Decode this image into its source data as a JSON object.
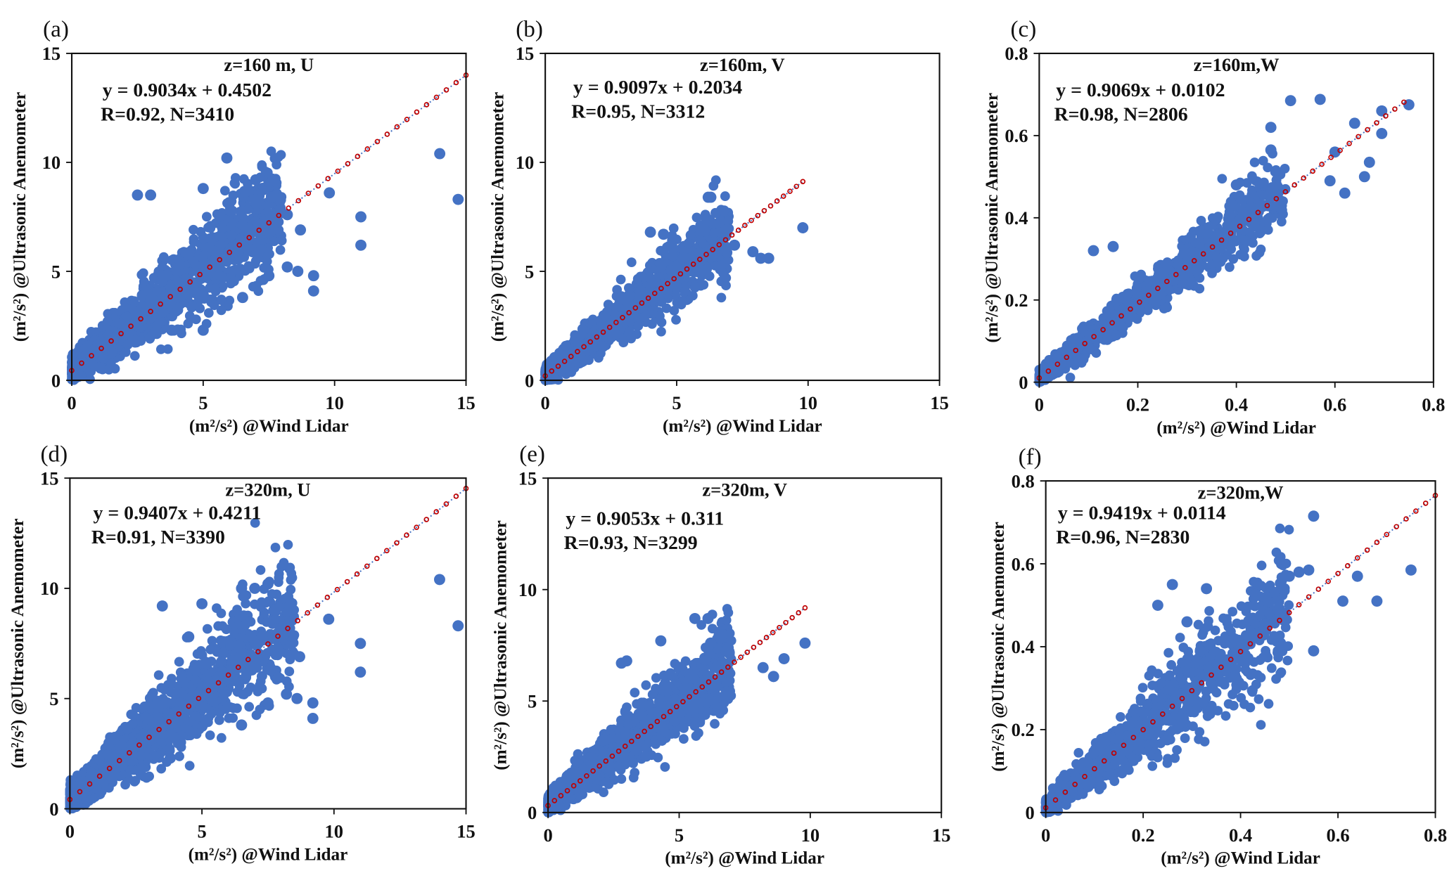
{
  "chart_data": [
    {
      "id": "a",
      "type": "scatter",
      "panel_label": "(a)",
      "title": "z=160 m, U",
      "equation": "y = 0.9034x + 0.4502",
      "stats": "R=0.92, N=3410",
      "xlabel": "(m²/s²) @Wind Lidar",
      "ylabel": "(m²/s²) @Ultrasonic Anemometer",
      "xlim": [
        0,
        15
      ],
      "ylim": [
        0,
        15
      ],
      "xticks": [
        "0",
        "5",
        "10",
        "15"
      ],
      "yticks": [
        "0",
        "5",
        "10",
        "15"
      ],
      "fit": {
        "slope": 0.9034,
        "intercept": 0.4502,
        "x_range": [
          0,
          15
        ]
      },
      "N": 3410,
      "R": 0.92,
      "cloud": {
        "xmax": 8,
        "spread": 0.28,
        "base": 0.3
      },
      "outliers": [
        [
          14,
          10.4
        ],
        [
          14.7,
          8.3
        ],
        [
          11,
          7.5
        ],
        [
          11,
          6.2
        ],
        [
          9.8,
          8.6
        ],
        [
          9.2,
          4.8
        ],
        [
          9.2,
          4.1
        ],
        [
          8.6,
          5
        ],
        [
          8.2,
          5.2
        ],
        [
          7.5,
          4.8
        ],
        [
          5.9,
          10.2
        ],
        [
          7,
          9.2
        ],
        [
          2.5,
          8.5
        ],
        [
          3,
          8.5
        ],
        [
          5,
          8.8
        ],
        [
          8.7,
          6.9
        ],
        [
          8.2,
          7.6
        ],
        [
          7,
          8.3
        ],
        [
          7.6,
          8.4
        ],
        [
          6.5,
          3.8
        ],
        [
          5,
          2.3
        ],
        [
          3.8,
          2.3
        ]
      ]
    },
    {
      "id": "b",
      "type": "scatter",
      "panel_label": "(b)",
      "title": "z=160m, V",
      "equation": "y = 0.9097x + 0.2034",
      "stats": "R=0.95, N=3312",
      "xlabel": "(m²/s²) @Wind Lidar",
      "ylabel": "(m²/s²) @Ultrasonic Anemometer",
      "xlim": [
        0,
        15
      ],
      "ylim": [
        0,
        15
      ],
      "xticks": [
        "0",
        "5",
        "10",
        "15"
      ],
      "yticks": [
        "0",
        "5",
        "10",
        "15"
      ],
      "fit": {
        "slope": 0.9097,
        "intercept": 0.2034,
        "x_range": [
          0,
          9.8
        ]
      },
      "N": 3312,
      "R": 0.95,
      "cloud": {
        "xmax": 7,
        "spread": 0.22,
        "base": 0.2
      },
      "outliers": [
        [
          9.8,
          7
        ],
        [
          6.2,
          8.4
        ],
        [
          6.3,
          8.4
        ],
        [
          8.5,
          5.6
        ],
        [
          8.2,
          5.6
        ],
        [
          7.9,
          5.9
        ],
        [
          4,
          6.8
        ],
        [
          4.5,
          6.7
        ],
        [
          7.2,
          6.2
        ]
      ]
    },
    {
      "id": "c",
      "type": "scatter",
      "panel_label": "(c)",
      "title": "z=160m,W",
      "equation": "y = 0.9069x + 0.0102",
      "stats": "R=0.98, N=2806",
      "xlabel": "(m²/s²) @Wind Lidar",
      "ylabel": "(m²/s²) @Ultrasonic Anemometer",
      "xlim": [
        0,
        0.8
      ],
      "ylim": [
        0,
        0.8
      ],
      "xticks": [
        "0",
        "0.2",
        "0.4",
        "0.6",
        "0.8"
      ],
      "yticks": [
        "0",
        "0.2",
        "0.4",
        "0.6",
        "0.8"
      ],
      "fit": {
        "slope": 0.9069,
        "intercept": 0.0102,
        "x_range": [
          0,
          0.74
        ]
      },
      "N": 2806,
      "R": 0.98,
      "cloud": {
        "xmax": 0.5,
        "spread": 0.16,
        "base": 0.008
      },
      "outliers": [
        [
          0.51,
          0.685
        ],
        [
          0.57,
          0.688
        ],
        [
          0.75,
          0.675
        ],
        [
          0.695,
          0.66
        ],
        [
          0.695,
          0.605
        ],
        [
          0.64,
          0.63
        ],
        [
          0.47,
          0.62
        ],
        [
          0.66,
          0.5
        ],
        [
          0.62,
          0.46
        ],
        [
          0.67,
          0.535
        ],
        [
          0.59,
          0.49
        ],
        [
          0.6,
          0.56
        ],
        [
          0.47,
          0.565
        ],
        [
          0.4,
          0.48
        ],
        [
          0.15,
          0.33
        ],
        [
          0.11,
          0.32
        ]
      ]
    },
    {
      "id": "d",
      "type": "scatter",
      "panel_label": "(d)",
      "title": "z=320m, U",
      "equation": "y = 0.9407x + 0.4211",
      "stats": "R=0.91, N=3390",
      "xlabel": "(m²/s²) @Wind Lidar",
      "ylabel": "(m²/s²) @Ultrasonic Anemometer",
      "xlim": [
        0,
        15
      ],
      "ylim": [
        0,
        15
      ],
      "xticks": [
        "0",
        "5",
        "10",
        "15"
      ],
      "yticks": [
        "0",
        "5",
        "10",
        "15"
      ],
      "fit": {
        "slope": 0.9407,
        "intercept": 0.4211,
        "x_range": [
          0,
          15
        ]
      },
      "N": 3390,
      "R": 0.91,
      "cloud": {
        "xmax": 8.5,
        "spread": 0.3,
        "base": 0.3
      },
      "outliers": [
        [
          14,
          10.4
        ],
        [
          14.7,
          8.3
        ],
        [
          11,
          7.5
        ],
        [
          11,
          6.2
        ],
        [
          9.8,
          8.6
        ],
        [
          9.2,
          4.8
        ],
        [
          9.2,
          4.1
        ],
        [
          8.6,
          5
        ],
        [
          8.2,
          5.2
        ],
        [
          7.5,
          4.8
        ],
        [
          7,
          10
        ],
        [
          7.5,
          10.2
        ],
        [
          6.5,
          10
        ],
        [
          5,
          9.3
        ],
        [
          3.5,
          9.2
        ],
        [
          4.5,
          7.8
        ],
        [
          8.7,
          6.9
        ],
        [
          6.5,
          3.8
        ],
        [
          3.8,
          2.3
        ]
      ]
    },
    {
      "id": "e",
      "type": "scatter",
      "panel_label": "(e)",
      "title": "z=320m, V",
      "equation": "y = 0.9053x + 0.311",
      "stats": "R=0.93, N=3299",
      "xlabel": "(m²/s²) @Wind Lidar",
      "ylabel": "(m²/s²) @Ultrasonic Anemometer",
      "xlim": [
        0,
        15
      ],
      "ylim": [
        0,
        15
      ],
      "xticks": [
        "0",
        "5",
        "10",
        "15"
      ],
      "yticks": [
        "0",
        "5",
        "10",
        "15"
      ],
      "fit": {
        "slope": 0.9053,
        "intercept": 0.311,
        "x_range": [
          0,
          9.8
        ]
      },
      "N": 3299,
      "R": 0.93,
      "cloud": {
        "xmax": 7,
        "spread": 0.28,
        "base": 0.2
      },
      "outliers": [
        [
          4.3,
          7.7
        ],
        [
          5.6,
          8.7
        ],
        [
          6.1,
          8.7
        ],
        [
          9.8,
          7.6
        ],
        [
          9,
          6.9
        ],
        [
          8.2,
          6.5
        ],
        [
          8.6,
          6.1
        ],
        [
          2.8,
          6.7
        ],
        [
          3,
          6.8
        ],
        [
          6.2,
          7.6
        ]
      ]
    },
    {
      "id": "f",
      "type": "scatter",
      "panel_label": "(f)",
      "title": "z=320m,W",
      "equation": "y = 0.9419x + 0.0114",
      "stats": "R=0.96, N=2830",
      "xlabel": "(m²/s²) @Wind Lidar",
      "ylabel": "(m²/s²) @Ultrasonic Anemometer",
      "xlim": [
        0,
        0.8
      ],
      "ylim": [
        0,
        0.8
      ],
      "xticks": [
        "0",
        "0.2",
        "0.4",
        "0.6",
        "0.8"
      ],
      "yticks": [
        "0",
        "0.2",
        "0.4",
        "0.6",
        "0.8"
      ],
      "fit": {
        "slope": 0.9419,
        "intercept": 0.0114,
        "x_range": [
          0,
          0.8
        ]
      },
      "N": 2830,
      "R": 0.96,
      "cloud": {
        "xmax": 0.5,
        "spread": 0.3,
        "base": 0.01
      },
      "outliers": [
        [
          0.55,
          0.715
        ],
        [
          0.75,
          0.585
        ],
        [
          0.68,
          0.51
        ],
        [
          0.64,
          0.57
        ],
        [
          0.61,
          0.51
        ],
        [
          0.33,
          0.54
        ],
        [
          0.26,
          0.55
        ],
        [
          0.54,
          0.585
        ],
        [
          0.52,
          0.58
        ],
        [
          0.5,
          0.57
        ],
        [
          0.55,
          0.39
        ],
        [
          0.23,
          0.5
        ],
        [
          0.29,
          0.46
        ]
      ]
    }
  ],
  "colors": {
    "points": "#4472C4",
    "fit_marker": "#C00000",
    "fit_line": "#4472C4",
    "axis": "#111111"
  }
}
